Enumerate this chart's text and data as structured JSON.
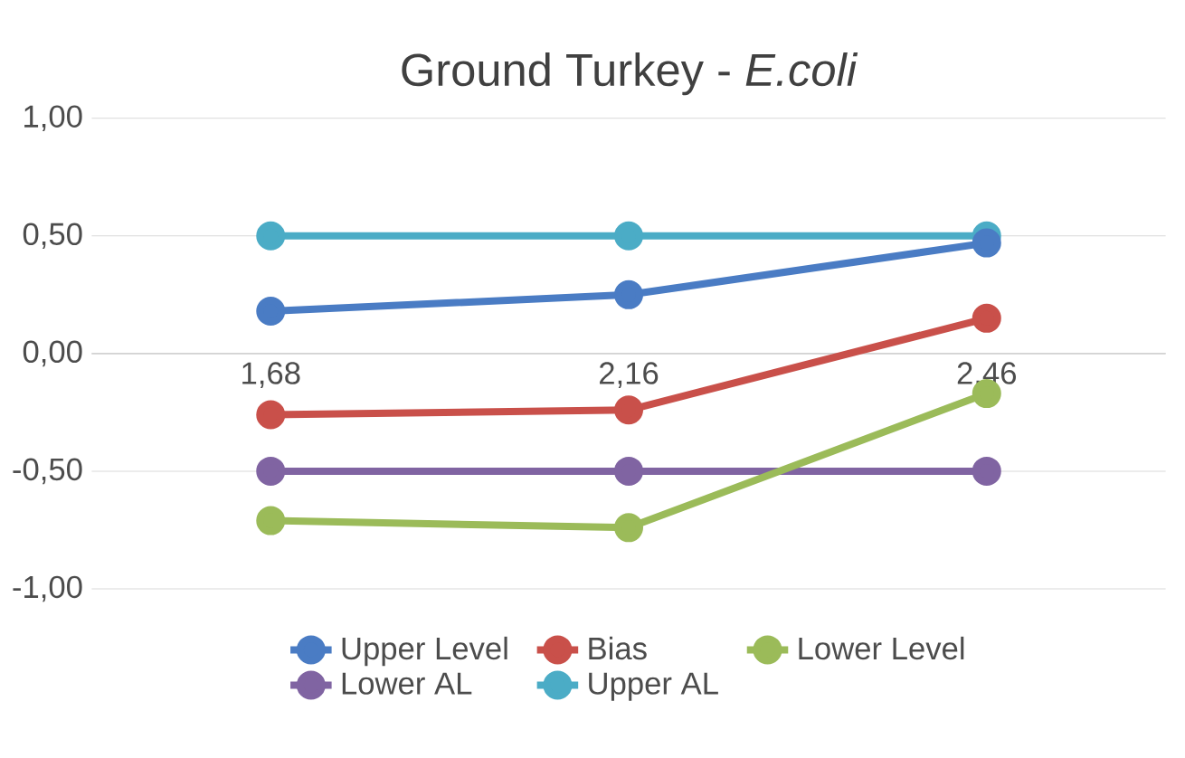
{
  "chart_data": {
    "type": "line",
    "title": "Ground Turkey - *E.coli*",
    "categories": [
      "1,68",
      "2,16",
      "2,46"
    ],
    "series": [
      {
        "name": "Upper Level",
        "color": "#4a7cc4",
        "values": [
          0.18,
          0.25,
          0.47
        ]
      },
      {
        "name": "Bias",
        "color": "#c9504a",
        "values": [
          -0.26,
          -0.24,
          0.15
        ]
      },
      {
        "name": "Lower Level",
        "color": "#9bbb59",
        "values": [
          -0.71,
          -0.74,
          -0.17
        ]
      },
      {
        "name": "Lower AL",
        "color": "#8064a2",
        "values": [
          -0.5,
          -0.5,
          -0.5
        ]
      },
      {
        "name": "Upper AL",
        "color": "#4bacc6",
        "values": [
          0.5,
          0.5,
          0.5
        ]
      }
    ],
    "ylim": [
      -1,
      1
    ],
    "yticks": [
      {
        "value": -1,
        "label": "-1,00"
      },
      {
        "value": -0.5,
        "label": "-0,50"
      },
      {
        "value": 0,
        "label": "0,00"
      },
      {
        "value": 0.5,
        "label": "0,50"
      },
      {
        "value": 1,
        "label": "1,00"
      }
    ],
    "grid": "y",
    "legend": "bottom",
    "marker": "circle",
    "line_style": "solid"
  }
}
